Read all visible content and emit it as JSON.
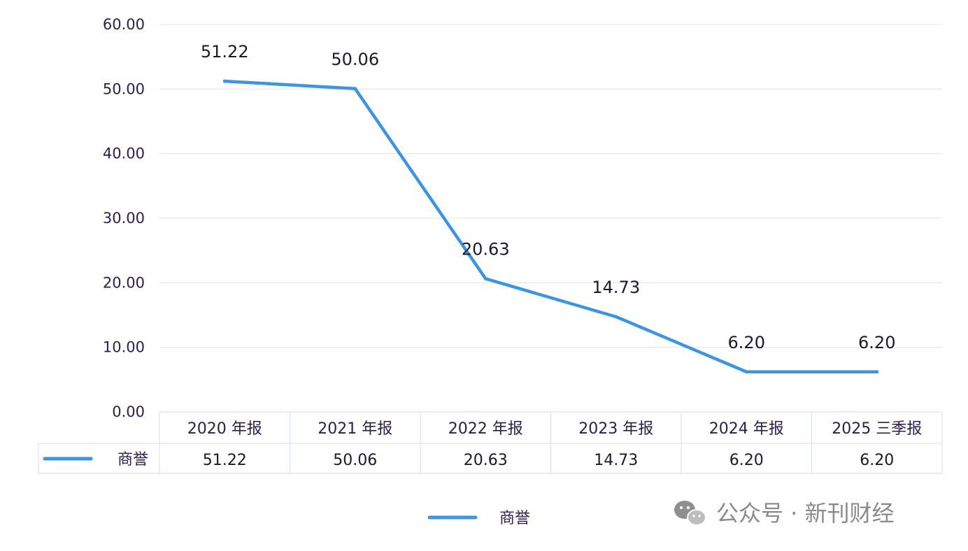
{
  "chart_data": {
    "type": "line",
    "categories": [
      "2020 年报",
      "2021 年报",
      "2022 年报",
      "2023 年报",
      "2024 年报",
      "2025 三季报"
    ],
    "series": [
      {
        "name": "商誉",
        "values": [
          51.22,
          50.06,
          20.63,
          14.73,
          6.2,
          6.2
        ],
        "labels": [
          "51.22",
          "50.06",
          "20.63",
          "14.73",
          "6.20",
          "6.20"
        ]
      }
    ],
    "y_ticks": [
      "0.00",
      "10.00",
      "20.00",
      "30.00",
      "40.00",
      "50.00",
      "60.00"
    ],
    "ylim": [
      0,
      60
    ],
    "grid": true,
    "data_table": true,
    "legend_position": "bottom",
    "title": "",
    "xlabel": "",
    "ylabel": ""
  },
  "watermark": {
    "text": "公众号 · 新刊财经",
    "icon": "wechat-icon"
  },
  "colors": {
    "line": "#3d94e0",
    "grid": "#dde3ee",
    "text": "#2b1d4d"
  }
}
